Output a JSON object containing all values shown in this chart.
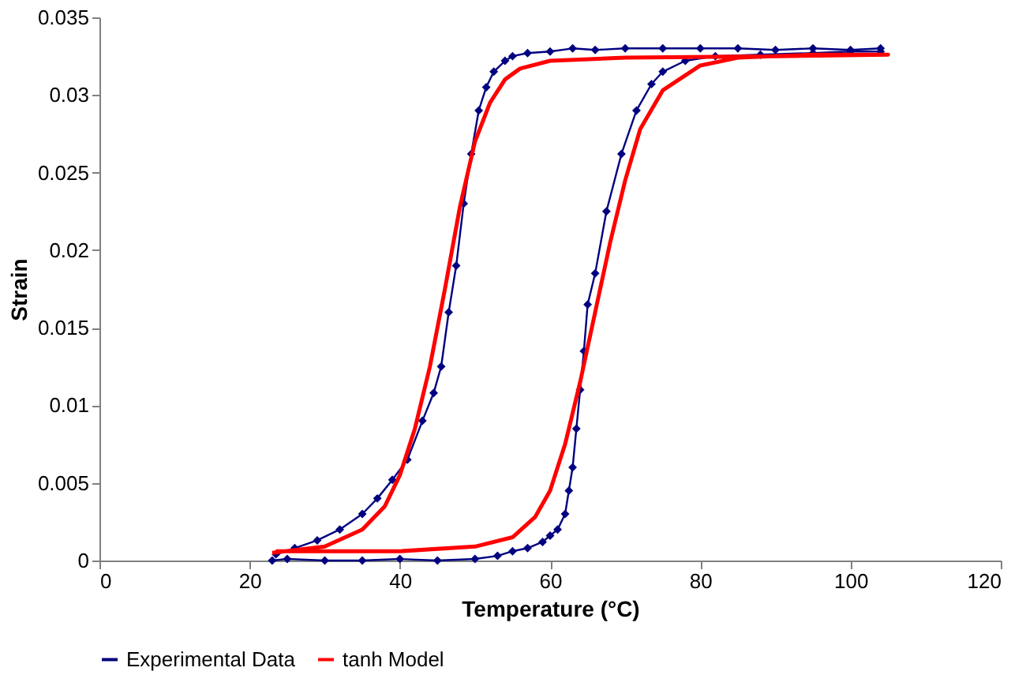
{
  "chart_data": {
    "type": "line",
    "xlabel": "Temperature (°C)",
    "ylabel": "Strain",
    "xlim": [
      0,
      120
    ],
    "xticks": [
      0,
      20,
      40,
      60,
      80,
      100,
      120
    ],
    "ylim": [
      0,
      0.035
    ],
    "yticks": [
      0,
      0.005,
      0.01,
      0.015,
      0.02,
      0.025,
      0.03,
      0.035
    ],
    "grid": false,
    "legend": "bottom",
    "series": [
      {
        "name": "Experimental Data",
        "color": "#000080",
        "marker": "diamond",
        "x": [
          23,
          25,
          30,
          35,
          40,
          45,
          50,
          53,
          55,
          57,
          59,
          60,
          61,
          62,
          62.5,
          63,
          63.5,
          64,
          64.5,
          65,
          66,
          67.5,
          69.5,
          71.5,
          73.5,
          75,
          78,
          82,
          88,
          95,
          100,
          104,
          104,
          100,
          95,
          90,
          85,
          80,
          75,
          70,
          66,
          63,
          60,
          57,
          55,
          54,
          52.5,
          51.5,
          50.5,
          49.5,
          48.5,
          47.5,
          46.5,
          45.5,
          44.5,
          43,
          41,
          39,
          37,
          35,
          32,
          29,
          26,
          23.5
        ],
        "values": [
          0,
          0.0001,
          0,
          0,
          0.0001,
          0,
          0.0001,
          0.0003,
          0.0006,
          0.0008,
          0.0012,
          0.0016,
          0.002,
          0.003,
          0.0045,
          0.006,
          0.0085,
          0.011,
          0.0135,
          0.0165,
          0.0185,
          0.0225,
          0.0262,
          0.029,
          0.0307,
          0.0315,
          0.0322,
          0.0325,
          0.0326,
          0.0327,
          0.0328,
          0.0328,
          0.033,
          0.0329,
          0.033,
          0.0329,
          0.033,
          0.033,
          0.033,
          0.033,
          0.0329,
          0.033,
          0.0328,
          0.0327,
          0.0325,
          0.0322,
          0.0315,
          0.0305,
          0.029,
          0.0262,
          0.023,
          0.019,
          0.016,
          0.0125,
          0.0108,
          0.009,
          0.0065,
          0.0052,
          0.004,
          0.003,
          0.002,
          0.0013,
          0.0008,
          0.0004
        ]
      },
      {
        "name": "tanh Model",
        "color": "#ff0000",
        "marker": "none",
        "x": [
          23.5,
          40,
          50,
          55,
          58,
          60,
          62,
          64,
          66,
          68,
          70,
          72,
          75,
          80,
          85,
          95,
          105,
          90,
          70,
          60,
          56,
          54,
          52,
          50,
          48,
          46,
          44,
          42,
          40,
          38,
          35,
          30,
          23
        ],
        "values": [
          0.0006,
          0.0006,
          0.0009,
          0.0015,
          0.0028,
          0.0045,
          0.0075,
          0.0115,
          0.016,
          0.0205,
          0.0245,
          0.0278,
          0.0303,
          0.0319,
          0.0324,
          0.0326,
          0.0326,
          0.0325,
          0.0324,
          0.0322,
          0.0317,
          0.031,
          0.0295,
          0.027,
          0.0228,
          0.0175,
          0.0125,
          0.0085,
          0.0055,
          0.0035,
          0.002,
          0.0009,
          0.0005
        ]
      }
    ]
  }
}
